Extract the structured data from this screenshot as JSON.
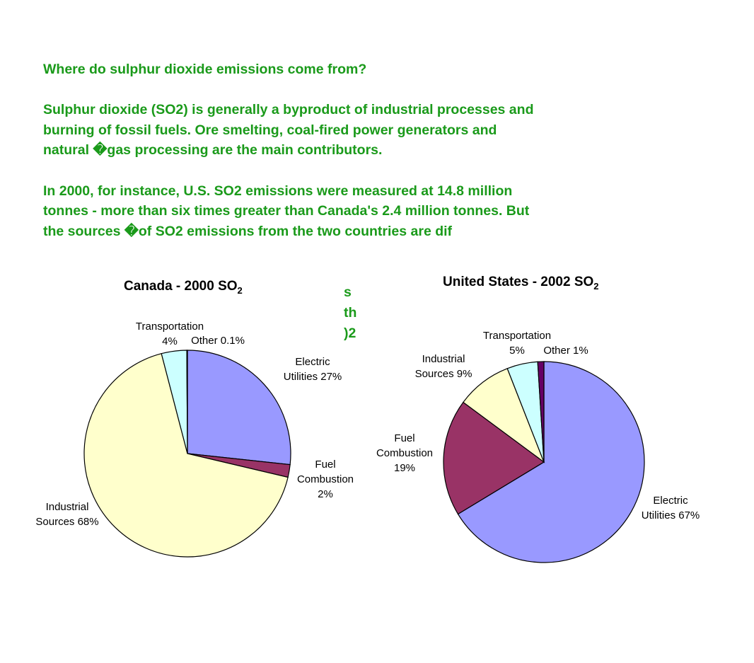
{
  "text": {
    "heading": "Where do sulphur dioxide emissions come from?",
    "para1": "Sulphur dioxide (SO2) is generally a byproduct of industrial processes and burning of fossil fuels. Ore smelting, coal-fired power generators and natural �gas processing are the main contributors.",
    "para2": " In 2000, for instance, U.S. SO2 emissions were measured at 14.8 million tonnes - more than six times greater than Canada's 2.4 million tonnes. But the sources �of SO2 emissions from the two countries are dif",
    "peek1": "s",
    "peek2": "th",
    "peek3": ")2"
  },
  "colors": {
    "text": "#1a9a1a",
    "electric": "#9999ff",
    "fuel": "#993366",
    "industrial": "#ffffcc",
    "transport": "#ccffff",
    "other": "#660066",
    "outline": "#000000"
  },
  "chart_data": [
    {
      "type": "pie",
      "title": "Canada - 2000 SO",
      "title_sub": "2",
      "slices": [
        {
          "label": "Electric Utilities 27%",
          "value": 27,
          "color": "#9999ff",
          "label_lines": [
            "Electric",
            "Utilities 27%"
          ]
        },
        {
          "label": "Fuel Combustion 2%",
          "value": 2,
          "color": "#993366",
          "label_lines": [
            "Fuel",
            "Combustion",
            "2%"
          ]
        },
        {
          "label": "Industrial Sources 68%",
          "value": 68,
          "color": "#ffffcc",
          "label_lines": [
            "Industrial",
            "Sources 68%"
          ]
        },
        {
          "label": "Transportation 4%",
          "value": 4,
          "color": "#ccffff",
          "label_lines": [
            "Transportation",
            "4%"
          ]
        },
        {
          "label": "Other 0.1%",
          "value": 0.1,
          "color": "#660066",
          "label_lines": [
            "Other 0.1%"
          ]
        }
      ]
    },
    {
      "type": "pie",
      "title": "United States -  2002 SO",
      "title_sub": "2",
      "slices": [
        {
          "label": "Electric Utilities 67%",
          "value": 67,
          "color": "#9999ff",
          "label_lines": [
            "Electric",
            "Utilities 67%"
          ]
        },
        {
          "label": "Fuel Combustion 19%",
          "value": 19,
          "color": "#993366",
          "label_lines": [
            "Fuel",
            "Combustion",
            "19%"
          ]
        },
        {
          "label": "Industrial Sources 9%",
          "value": 9,
          "color": "#ffffcc",
          "label_lines": [
            "Industrial",
            "Sources 9%"
          ]
        },
        {
          "label": "Transportation 5%",
          "value": 5,
          "color": "#ccffff",
          "label_lines": [
            "Transportation",
            "5%"
          ]
        },
        {
          "label": "Other 1%",
          "value": 1,
          "color": "#660066",
          "label_lines": [
            "Other 1%"
          ]
        }
      ]
    }
  ]
}
